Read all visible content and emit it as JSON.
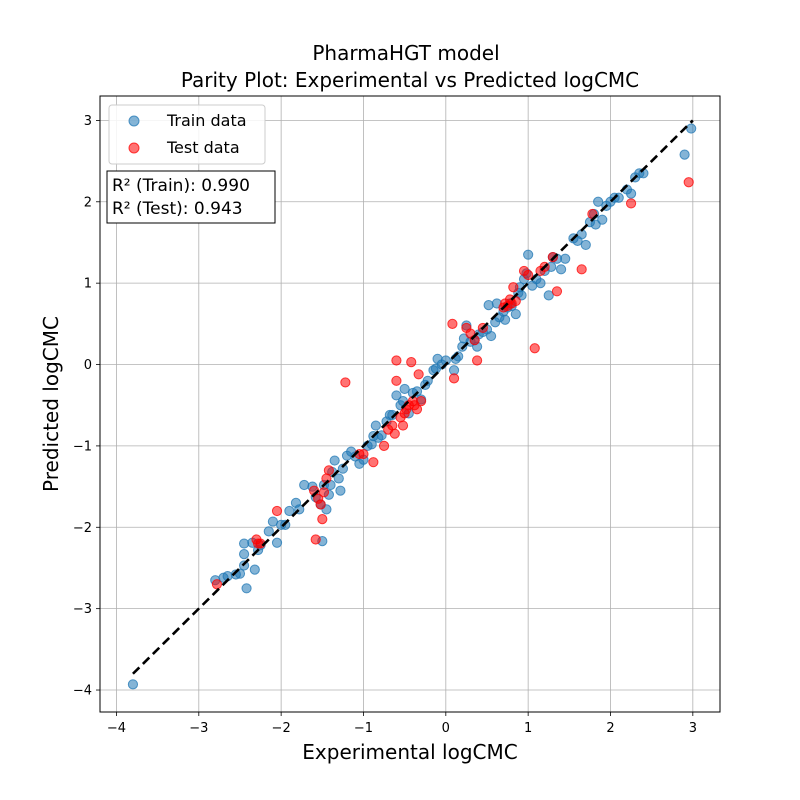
{
  "chart_data": {
    "type": "scatter",
    "title_line1": "PharmaHGT model",
    "title_line2": "Parity Plot: Experimental vs Predicted logCMC",
    "xlabel": "Experimental logCMC",
    "ylabel": "Predicted logCMC",
    "xlim": [
      -4.2,
      3.33
    ],
    "ylim": [
      -4.27,
      3.3
    ],
    "xticks": [
      -4,
      -3,
      -2,
      -1,
      0,
      1,
      2,
      3
    ],
    "yticks": [
      -4,
      -3,
      -2,
      -1,
      0,
      1,
      2,
      3
    ],
    "xtick_labels": [
      "−4",
      "−3",
      "−2",
      "−1",
      "0",
      "1",
      "2",
      "3"
    ],
    "ytick_labels": [
      "−4",
      "−3",
      "−2",
      "−1",
      "0",
      "1",
      "2",
      "3"
    ],
    "grid": true,
    "legend_position": "top-left",
    "legend": [
      {
        "label": "Train data",
        "color": "#1f77b4"
      },
      {
        "label": "Test data",
        "color": "#ff0000"
      }
    ],
    "annotation": {
      "line1": "R² (Train): 0.990",
      "line2": "R² (Test): 0.943"
    },
    "identity_line": {
      "x": [
        -3.8,
        3.0
      ],
      "y": [
        -3.8,
        3.0
      ],
      "color": "#000000",
      "style": "dashed"
    },
    "series": [
      {
        "name": "Train data",
        "color": "#1f77b4",
        "points": [
          [
            -3.8,
            -3.93
          ],
          [
            -2.8,
            -2.65
          ],
          [
            -2.7,
            -2.62
          ],
          [
            -2.65,
            -2.6
          ],
          [
            -2.55,
            -2.58
          ],
          [
            -2.5,
            -2.57
          ],
          [
            -2.45,
            -2.47
          ],
          [
            -2.45,
            -2.33
          ],
          [
            -2.45,
            -2.2
          ],
          [
            -2.42,
            -2.75
          ],
          [
            -2.35,
            -2.19
          ],
          [
            -2.32,
            -2.52
          ],
          [
            -2.28,
            -2.28
          ],
          [
            -2.25,
            -2.22
          ],
          [
            -2.15,
            -2.05
          ],
          [
            -2.1,
            -1.93
          ],
          [
            -2.05,
            -2.19
          ],
          [
            -2.0,
            -1.97
          ],
          [
            -1.95,
            -1.97
          ],
          [
            -1.9,
            -1.8
          ],
          [
            -1.82,
            -1.7
          ],
          [
            -1.78,
            -1.78
          ],
          [
            -1.72,
            -1.48
          ],
          [
            -1.62,
            -1.5
          ],
          [
            -1.58,
            -1.63
          ],
          [
            -1.52,
            -1.72
          ],
          [
            -1.5,
            -2.17
          ],
          [
            -1.48,
            -1.48
          ],
          [
            -1.45,
            -1.78
          ],
          [
            -1.42,
            -1.6
          ],
          [
            -1.4,
            -1.48
          ],
          [
            -1.38,
            -1.32
          ],
          [
            -1.35,
            -1.18
          ],
          [
            -1.3,
            -1.4
          ],
          [
            -1.28,
            -1.55
          ],
          [
            -1.25,
            -1.28
          ],
          [
            -1.2,
            -1.12
          ],
          [
            -1.15,
            -1.07
          ],
          [
            -1.1,
            -1.13
          ],
          [
            -1.05,
            -1.22
          ],
          [
            -1.0,
            -1.17
          ],
          [
            -0.95,
            -1.0
          ],
          [
            -0.9,
            -0.98
          ],
          [
            -0.88,
            -0.88
          ],
          [
            -0.85,
            -0.75
          ],
          [
            -0.82,
            -0.9
          ],
          [
            -0.78,
            -0.87
          ],
          [
            -0.72,
            -0.7
          ],
          [
            -0.68,
            -0.62
          ],
          [
            -0.65,
            -0.62
          ],
          [
            -0.6,
            -0.38
          ],
          [
            -0.55,
            -0.5
          ],
          [
            -0.52,
            -0.45
          ],
          [
            -0.5,
            -0.3
          ],
          [
            -0.45,
            -0.6
          ],
          [
            -0.4,
            -0.35
          ],
          [
            -0.35,
            -0.33
          ],
          [
            -0.3,
            -0.43
          ],
          [
            -0.25,
            -0.25
          ],
          [
            -0.22,
            -0.2
          ],
          [
            -0.15,
            -0.07
          ],
          [
            -0.12,
            -0.05
          ],
          [
            -0.1,
            0.07
          ],
          [
            -0.05,
            0.0
          ],
          [
            0.0,
            0.05
          ],
          [
            0.1,
            -0.07
          ],
          [
            0.12,
            0.07
          ],
          [
            0.15,
            0.1
          ],
          [
            0.2,
            0.22
          ],
          [
            0.22,
            0.32
          ],
          [
            0.25,
            0.48
          ],
          [
            0.3,
            0.28
          ],
          [
            0.35,
            0.3
          ],
          [
            0.38,
            0.22
          ],
          [
            0.4,
            0.37
          ],
          [
            0.45,
            0.4
          ],
          [
            0.5,
            0.43
          ],
          [
            0.52,
            0.73
          ],
          [
            0.55,
            0.35
          ],
          [
            0.6,
            0.52
          ],
          [
            0.62,
            0.75
          ],
          [
            0.65,
            0.58
          ],
          [
            0.7,
            0.65
          ],
          [
            0.72,
            0.55
          ],
          [
            0.75,
            0.7
          ],
          [
            0.78,
            0.75
          ],
          [
            0.8,
            0.72
          ],
          [
            0.85,
            0.62
          ],
          [
            0.88,
            0.88
          ],
          [
            0.9,
            0.95
          ],
          [
            0.92,
            0.85
          ],
          [
            0.95,
            1.05
          ],
          [
            0.98,
            1.12
          ],
          [
            1.0,
            1.35
          ],
          [
            1.05,
            0.97
          ],
          [
            1.1,
            1.05
          ],
          [
            1.15,
            1.0
          ],
          [
            1.2,
            1.15
          ],
          [
            1.25,
            0.85
          ],
          [
            1.28,
            1.2
          ],
          [
            1.3,
            1.32
          ],
          [
            1.35,
            1.3
          ],
          [
            1.4,
            1.17
          ],
          [
            1.45,
            1.3
          ],
          [
            1.55,
            1.55
          ],
          [
            1.6,
            1.52
          ],
          [
            1.65,
            1.6
          ],
          [
            1.7,
            1.47
          ],
          [
            1.75,
            1.75
          ],
          [
            1.8,
            1.85
          ],
          [
            1.82,
            1.72
          ],
          [
            1.85,
            2.0
          ],
          [
            1.9,
            1.78
          ],
          [
            1.95,
            1.95
          ],
          [
            2.0,
            2.0
          ],
          [
            2.05,
            2.05
          ],
          [
            2.1,
            2.05
          ],
          [
            2.2,
            2.15
          ],
          [
            2.25,
            2.1
          ],
          [
            2.3,
            2.3
          ],
          [
            2.35,
            2.35
          ],
          [
            2.4,
            2.35
          ],
          [
            2.9,
            2.58
          ],
          [
            2.98,
            2.9
          ]
        ]
      },
      {
        "name": "Test data",
        "color": "#ff0000",
        "points": [
          [
            -2.78,
            -2.7
          ],
          [
            -2.3,
            -2.15
          ],
          [
            -2.28,
            -2.2
          ],
          [
            -2.25,
            -2.2
          ],
          [
            -2.05,
            -1.8
          ],
          [
            -1.6,
            -1.55
          ],
          [
            -1.58,
            -2.15
          ],
          [
            -1.55,
            -1.65
          ],
          [
            -1.52,
            -1.72
          ],
          [
            -1.5,
            -1.9
          ],
          [
            -1.48,
            -1.57
          ],
          [
            -1.45,
            -1.4
          ],
          [
            -1.42,
            -1.3
          ],
          [
            -1.22,
            -0.22
          ],
          [
            -1.05,
            -1.1
          ],
          [
            -1.0,
            -1.1
          ],
          [
            -0.88,
            -1.2
          ],
          [
            -0.75,
            -1.0
          ],
          [
            -0.7,
            -0.8
          ],
          [
            -0.65,
            -0.75
          ],
          [
            -0.62,
            -0.85
          ],
          [
            -0.6,
            -0.2
          ],
          [
            -0.6,
            0.05
          ],
          [
            -0.55,
            -0.65
          ],
          [
            -0.52,
            -0.75
          ],
          [
            -0.5,
            -0.6
          ],
          [
            -0.48,
            -0.55
          ],
          [
            -0.45,
            -0.5
          ],
          [
            -0.42,
            0.03
          ],
          [
            -0.4,
            -0.45
          ],
          [
            -0.38,
            -0.5
          ],
          [
            -0.35,
            -0.55
          ],
          [
            -0.33,
            -0.12
          ],
          [
            -0.3,
            -0.45
          ],
          [
            0.08,
            0.5
          ],
          [
            0.1,
            -0.17
          ],
          [
            0.25,
            0.45
          ],
          [
            0.3,
            0.38
          ],
          [
            0.35,
            0.3
          ],
          [
            0.38,
            0.05
          ],
          [
            0.45,
            0.45
          ],
          [
            0.7,
            0.7
          ],
          [
            0.72,
            0.75
          ],
          [
            0.75,
            0.72
          ],
          [
            0.78,
            0.8
          ],
          [
            0.8,
            0.75
          ],
          [
            0.82,
            0.95
          ],
          [
            0.85,
            0.78
          ],
          [
            0.95,
            1.15
          ],
          [
            1.0,
            1.1
          ],
          [
            1.08,
            0.2
          ],
          [
            1.15,
            1.15
          ],
          [
            1.2,
            1.2
          ],
          [
            1.3,
            1.32
          ],
          [
            1.35,
            0.9
          ],
          [
            1.65,
            1.17
          ],
          [
            1.78,
            1.85
          ],
          [
            2.25,
            1.98
          ],
          [
            2.95,
            2.24
          ]
        ]
      }
    ]
  }
}
